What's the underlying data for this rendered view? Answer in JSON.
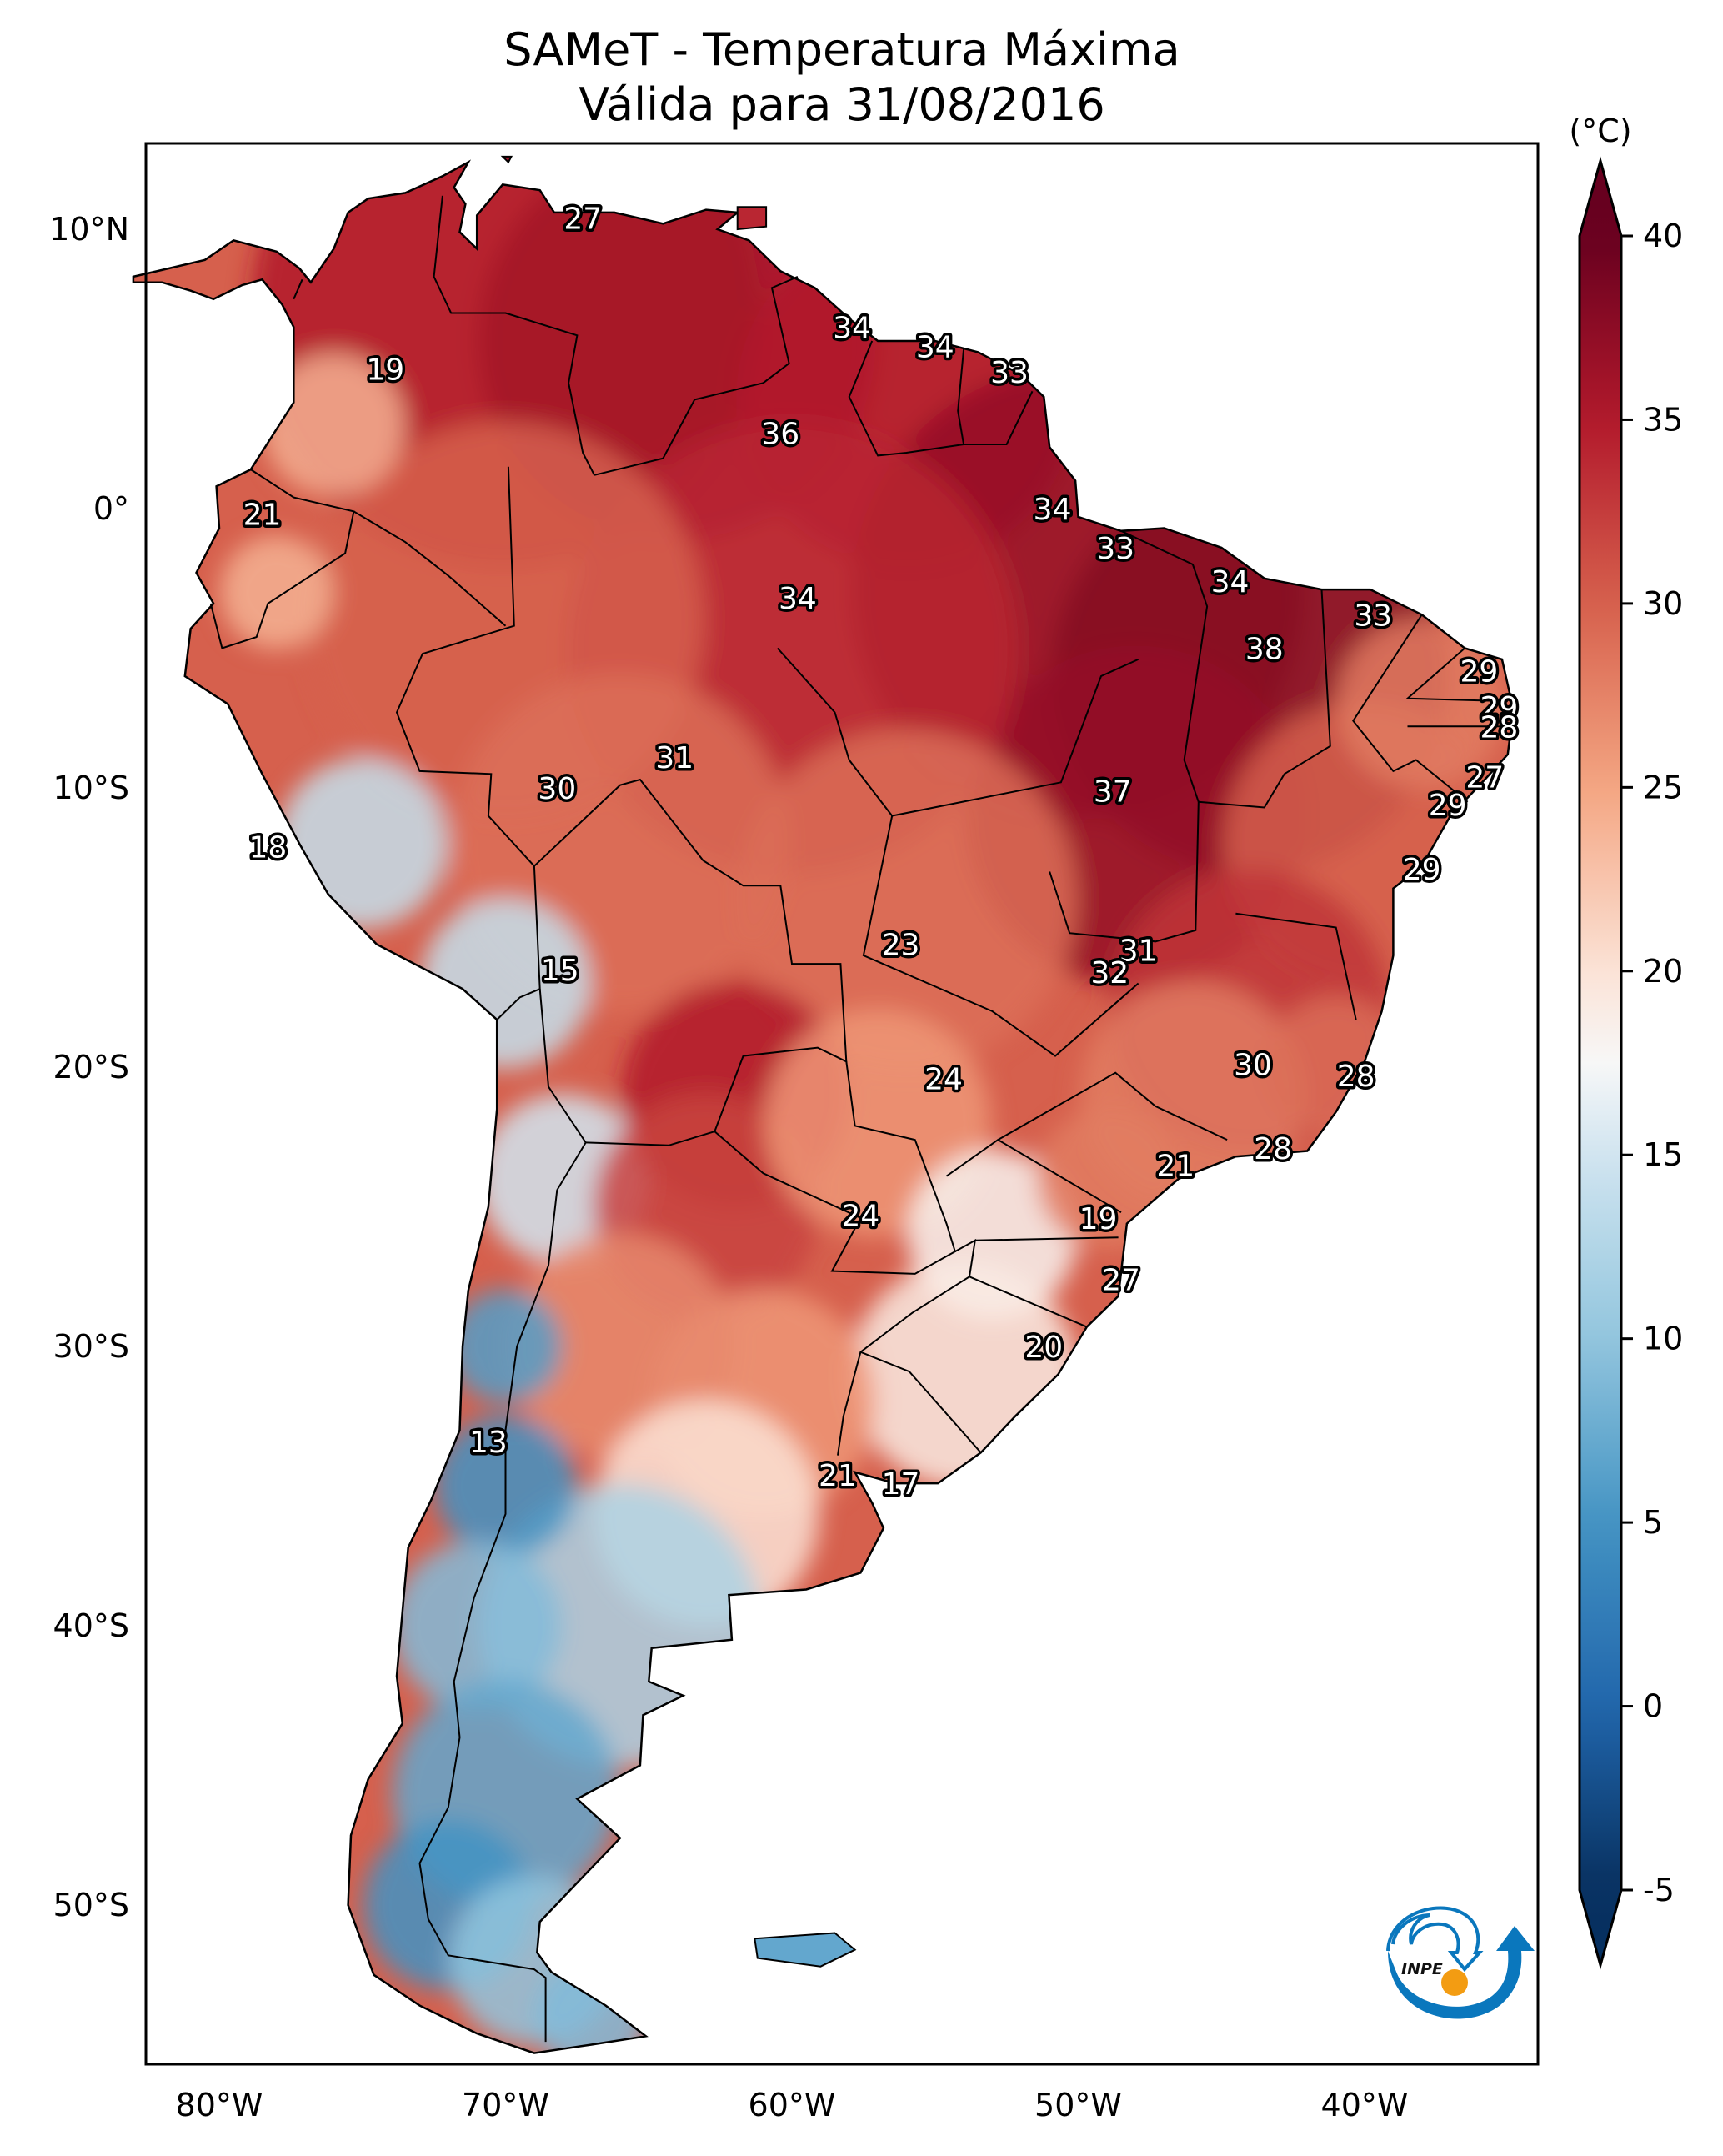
{
  "header": {
    "title_line1": "SAMeT - Temperatura Máxima",
    "title_line2": "Válida para 31/08/2016"
  },
  "logo": {
    "text": "INPE",
    "blue": "#0a77bd",
    "orange": "#f39c12"
  },
  "chart_data": {
    "type": "heatmap",
    "title": "SAMeT - Temperatura Máxima",
    "subtitle": "Válida para 31/08/2016",
    "variable": "Temperatura Máxima",
    "units": "(°C)",
    "xlabel": "",
    "ylabel": "",
    "xlim": [
      -83,
      -34
    ],
    "ylim": [
      -56.5,
      13
    ],
    "x_ticks": [
      {
        "value": -80,
        "label": "80°W"
      },
      {
        "value": -70,
        "label": "70°W"
      },
      {
        "value": -60,
        "label": "60°W"
      },
      {
        "value": -50,
        "label": "50°W"
      },
      {
        "value": -40,
        "label": "40°W"
      }
    ],
    "y_ticks": [
      {
        "value": 10,
        "label": "10°N"
      },
      {
        "value": 0,
        "label": "0°"
      },
      {
        "value": -10,
        "label": "10°S"
      },
      {
        "value": -20,
        "label": "20°S"
      },
      {
        "value": -30,
        "label": "30°S"
      },
      {
        "value": -40,
        "label": "40°S"
      },
      {
        "value": -50,
        "label": "50°S"
      }
    ],
    "colorbar": {
      "label": "(°C)",
      "range": [
        -5,
        40
      ],
      "extend": "both",
      "ticks": [
        {
          "value": 40,
          "label": "40"
        },
        {
          "value": 35,
          "label": "35"
        },
        {
          "value": 30,
          "label": "30"
        },
        {
          "value": 25,
          "label": "25"
        },
        {
          "value": 20,
          "label": "20"
        },
        {
          "value": 15,
          "label": "15"
        },
        {
          "value": 10,
          "label": "10"
        },
        {
          "value": 5,
          "label": "5"
        },
        {
          "value": 0,
          "label": "0"
        },
        {
          "value": -5,
          "label": "-5"
        }
      ],
      "colormap": "RdBu_r",
      "stops": [
        {
          "value": -7,
          "color": "#053061"
        },
        {
          "value": -5,
          "color": "#08305f"
        },
        {
          "value": 0,
          "color": "#2166ac"
        },
        {
          "value": 5,
          "color": "#4393c3"
        },
        {
          "value": 10,
          "color": "#92c5de"
        },
        {
          "value": 15,
          "color": "#d1e5f0"
        },
        {
          "value": 17.5,
          "color": "#f7f7f7"
        },
        {
          "value": 20,
          "color": "#fbe3d6"
        },
        {
          "value": 25,
          "color": "#f4a582"
        },
        {
          "value": 30,
          "color": "#d6604d"
        },
        {
          "value": 35,
          "color": "#b2182b"
        },
        {
          "value": 40,
          "color": "#67001f"
        }
      ]
    },
    "station_values": [
      {
        "lon": -67.3,
        "lat": 10.4,
        "value": 27
      },
      {
        "lon": -74.2,
        "lat": 5.0,
        "value": 19
      },
      {
        "lon": -78.5,
        "lat": -0.2,
        "value": 21
      },
      {
        "lon": -57.9,
        "lat": 6.5,
        "value": 34
      },
      {
        "lon": -55.0,
        "lat": 5.8,
        "value": 34
      },
      {
        "lon": -52.4,
        "lat": 4.9,
        "value": 33
      },
      {
        "lon": -60.4,
        "lat": 2.7,
        "value": 36
      },
      {
        "lon": -50.9,
        "lat": 0.0,
        "value": 34
      },
      {
        "lon": -48.7,
        "lat": -1.4,
        "value": 33
      },
      {
        "lon": -44.7,
        "lat": -2.6,
        "value": 34
      },
      {
        "lon": -59.8,
        "lat": -3.2,
        "value": 34
      },
      {
        "lon": -39.7,
        "lat": -3.8,
        "value": 33
      },
      {
        "lon": -43.5,
        "lat": -5.0,
        "value": 38
      },
      {
        "lon": -36.0,
        "lat": -5.8,
        "value": 29
      },
      {
        "lon": -35.3,
        "lat": -7.1,
        "value": 29
      },
      {
        "lon": -35.3,
        "lat": -7.8,
        "value": 28
      },
      {
        "lon": -35.8,
        "lat": -9.6,
        "value": 27
      },
      {
        "lon": -37.1,
        "lat": -10.6,
        "value": 29
      },
      {
        "lon": -48.8,
        "lat": -10.1,
        "value": 37
      },
      {
        "lon": -64.1,
        "lat": -8.9,
        "value": 31
      },
      {
        "lon": -68.2,
        "lat": -10.0,
        "value": 30
      },
      {
        "lon": -78.3,
        "lat": -12.1,
        "value": 18
      },
      {
        "lon": -38.0,
        "lat": -12.9,
        "value": 29
      },
      {
        "lon": -68.1,
        "lat": -16.5,
        "value": 15
      },
      {
        "lon": -56.2,
        "lat": -15.6,
        "value": 23
      },
      {
        "lon": -47.9,
        "lat": -15.8,
        "value": 31
      },
      {
        "lon": -48.9,
        "lat": -16.6,
        "value": 32
      },
      {
        "lon": -54.7,
        "lat": -20.4,
        "value": 24
      },
      {
        "lon": -43.9,
        "lat": -19.9,
        "value": 30
      },
      {
        "lon": -40.3,
        "lat": -20.3,
        "value": 28
      },
      {
        "lon": -46.6,
        "lat": -23.5,
        "value": 21
      },
      {
        "lon": -43.2,
        "lat": -22.9,
        "value": 28
      },
      {
        "lon": -57.6,
        "lat": -25.3,
        "value": 24
      },
      {
        "lon": -49.3,
        "lat": -25.4,
        "value": 19
      },
      {
        "lon": -48.5,
        "lat": -27.6,
        "value": 27
      },
      {
        "lon": -51.2,
        "lat": -30.0,
        "value": 20
      },
      {
        "lon": -70.6,
        "lat": -33.4,
        "value": 13
      },
      {
        "lon": -58.4,
        "lat": -34.6,
        "value": 21
      },
      {
        "lon": -56.2,
        "lat": -34.9,
        "value": 17
      }
    ]
  }
}
